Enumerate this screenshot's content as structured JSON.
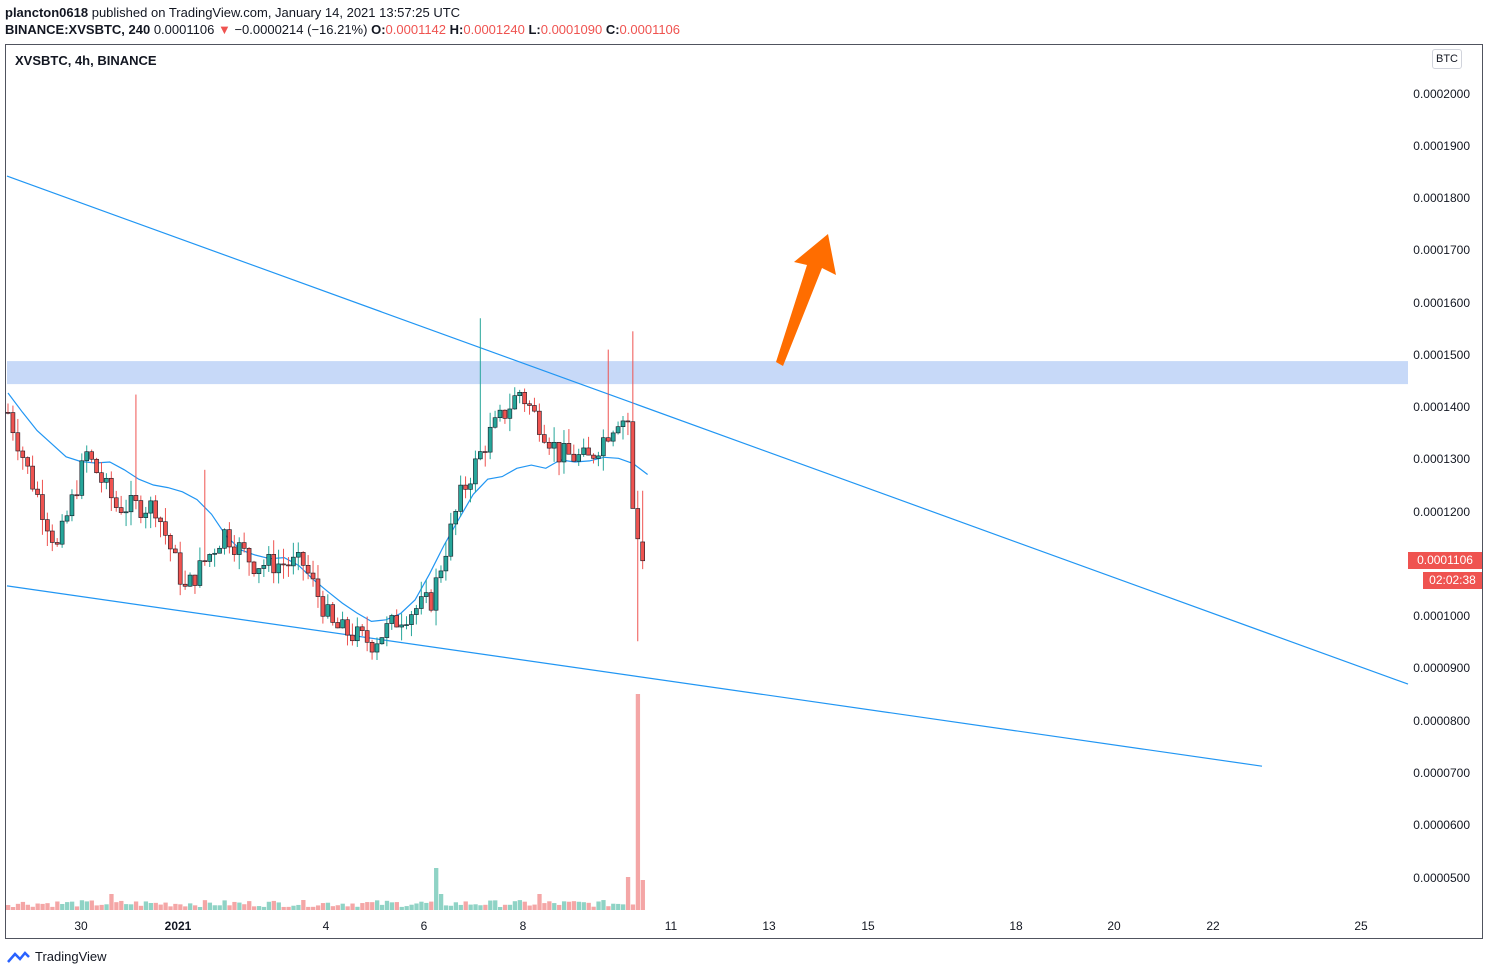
{
  "header": {
    "author": "plancton0618",
    "published_text": "published on TradingView.com, January 14, 2021 13:57:25 UTC",
    "symbol_line": "BINANCE:XVSBTC, 240",
    "last": "0.0001106",
    "change_arrow": "▼",
    "change": "−0.0000214 (−16.21%)",
    "o_label": "O:",
    "o_value": "0.0001142",
    "h_label": "H:",
    "h_value": "0.0001240",
    "l_label": "L:",
    "l_value": "0.0001090",
    "c_label": "C:",
    "c_value": "0.0001106"
  },
  "chart_title": "XVSBTC, 4h, BINANCE",
  "currency_button": "BTC",
  "last_price_tag": "0.0001106",
  "countdown": "02:02:38",
  "footer_logo_text": "TradingView",
  "price_labels": [
    "0.0002000",
    "0.0001900",
    "0.0001800",
    "0.0001700",
    "0.0001600",
    "0.0001500",
    "0.0001400",
    "0.0001300",
    "0.0001200",
    "0.0001100",
    "0.0001000",
    "0.0000900",
    "0.0000800",
    "0.0000700",
    "0.0000600",
    "0.0000500"
  ],
  "time_labels": [
    "30",
    "2021",
    "4",
    "6",
    "8",
    "11",
    "13",
    "15",
    "18",
    "20",
    "22",
    "25"
  ],
  "colors": {
    "up": "#26a69a",
    "down": "#ef5350",
    "up_volume": "#8fd3c5",
    "down_volume": "#f4a6a6",
    "trendline": "#2196f3",
    "ma": "#2196f3",
    "resistance_zone": "#c7d9f8",
    "arrow": "#ff6d00"
  },
  "chart_data": {
    "type": "candlestick",
    "y_range": [
      4.395e-05,
      0.00020718
    ],
    "resistance_zone": [
      0.0001444,
      0.0001488
    ],
    "moving_average": [
      0.0001427,
      0.000139,
      0.0001355,
      0.000133,
      0.0001305,
      0.0001296,
      0.0001293,
      0.0001295,
      0.000128,
      0.0001262,
      0.0001251,
      0.0001246,
      0.0001238,
      0.0001223,
      0.0001195,
      0.0001154,
      0.0001127,
      0.0001117,
      0.000111,
      0.0001112,
      0.0001097,
      0.000107,
      0.0001047,
      0.0001025,
      0.0001006,
      9.9e-05,
      9.93e-05,
      0.0001005,
      0.0001031,
      0.0001081,
      0.0001136,
      0.0001185,
      0.0001233,
      0.0001262,
      0.0001267,
      0.0001283,
      0.0001289,
      0.0001283,
      0.0001299,
      0.0001295,
      0.0001297,
      0.0001304,
      0.0001302,
      0.0001292,
      0.0001271
    ]
  }
}
